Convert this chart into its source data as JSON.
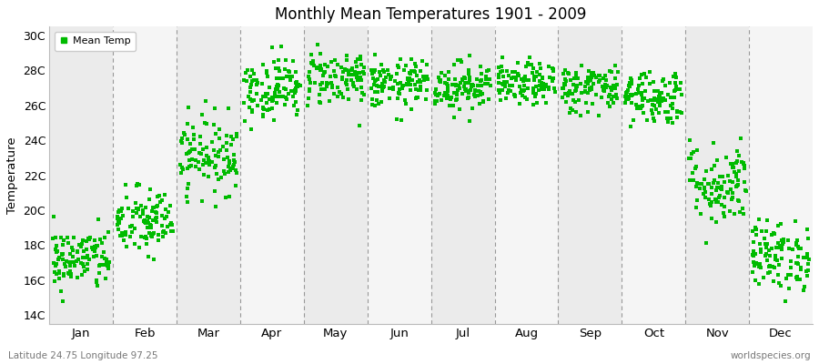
{
  "title": "Monthly Mean Temperatures 1901 - 2009",
  "ylabel": "Temperature",
  "xlabel_labels": [
    "Jan",
    "Feb",
    "Mar",
    "Apr",
    "May",
    "Jun",
    "Jul",
    "Aug",
    "Sep",
    "Oct",
    "Nov",
    "Dec"
  ],
  "ytick_labels": [
    "14C",
    "16C",
    "18C",
    "20C",
    "22C",
    "24C",
    "26C",
    "28C",
    "30C"
  ],
  "ytick_values": [
    14,
    16,
    18,
    20,
    22,
    24,
    26,
    28,
    30
  ],
  "ylim_min": 13.5,
  "ylim_max": 30.5,
  "legend_label": "Mean Temp",
  "dot_color": "#00bb00",
  "dot_size": 5,
  "background_color": "#ffffff",
  "plot_bg_odd": "#ebebeb",
  "plot_bg_even": "#f5f5f5",
  "vline_color": "#999999",
  "footer_left": "Latitude 24.75 Longitude 97.25",
  "footer_right": "worldspecies.org",
  "monthly_means": [
    17.2,
    19.3,
    23.2,
    27.0,
    27.6,
    27.2,
    27.1,
    27.2,
    27.0,
    26.5,
    21.5,
    17.4
  ],
  "monthly_stds": [
    0.9,
    1.0,
    1.1,
    0.9,
    0.8,
    0.7,
    0.7,
    0.6,
    0.7,
    0.8,
    1.2,
    1.0
  ],
  "n_years": 109,
  "seed": 42
}
